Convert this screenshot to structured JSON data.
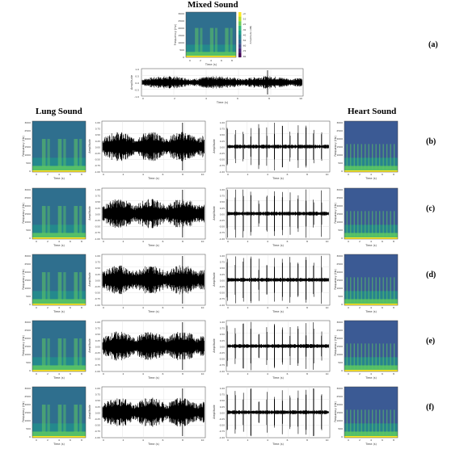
{
  "figure": {
    "top": {
      "title": "Mixed Sound",
      "label": "(a)",
      "spectrogram": {
        "ylabel": "Frequency (Hz)",
        "xlabel": "Time (s)",
        "colorbar_label": "Amplitude (dB)",
        "yticks": [
          "3000",
          "2500",
          "2000",
          "1500",
          "1000",
          "500",
          "0"
        ],
        "xticks": [
          "0",
          "2",
          "4",
          "6",
          "8"
        ],
        "cbar_ticks": [
          "+0",
          "-10",
          "-20",
          "-30",
          "-40",
          "-50",
          "-60",
          "-70",
          "-80"
        ]
      },
      "waveform": {
        "ylabel": "Amplitude",
        "xlabel": "Time (s)",
        "yticks": [
          "1.0",
          "0.5",
          "0.0",
          "-0.5",
          "-1.0"
        ],
        "xticks": [
          "0",
          "2",
          "4",
          "6",
          "8",
          "10"
        ]
      }
    },
    "left_heading": "Lung Sound",
    "right_heading": "Heart Sound",
    "rows": [
      {
        "label": "(b)"
      },
      {
        "label": "(c)"
      },
      {
        "label": "(d)"
      },
      {
        "label": "(e)"
      },
      {
        "label": "(f)"
      }
    ],
    "row_panel": {
      "spec_ylabel": "Frequency (Hz)",
      "spec_xlabel": "Time (s)",
      "spec_yticks": [
        "3000",
        "2500",
        "2000",
        "1500",
        "1000",
        "500",
        "0"
      ],
      "spec_xticks": [
        "0",
        "2",
        "4",
        "6",
        "8"
      ],
      "wave_ylabel": "Amplitude",
      "wave_xlabel": "Time (s)",
      "wave_yticks": [
        "1.00",
        "0.75",
        "0.50",
        "0.25",
        "0.00",
        "-0.25",
        "-0.50",
        "-0.75",
        "-1.00"
      ],
      "wave_xticks": [
        "0",
        "2",
        "4",
        "6",
        "8",
        "10"
      ]
    },
    "colors": {
      "spec_bg": "#2f6f8e",
      "spec_mid": "#21918c",
      "spec_low": "#5ec962",
      "spec_floor": "#fde725",
      "heart_bg": "#3b5a94",
      "wave": "#000000"
    }
  }
}
